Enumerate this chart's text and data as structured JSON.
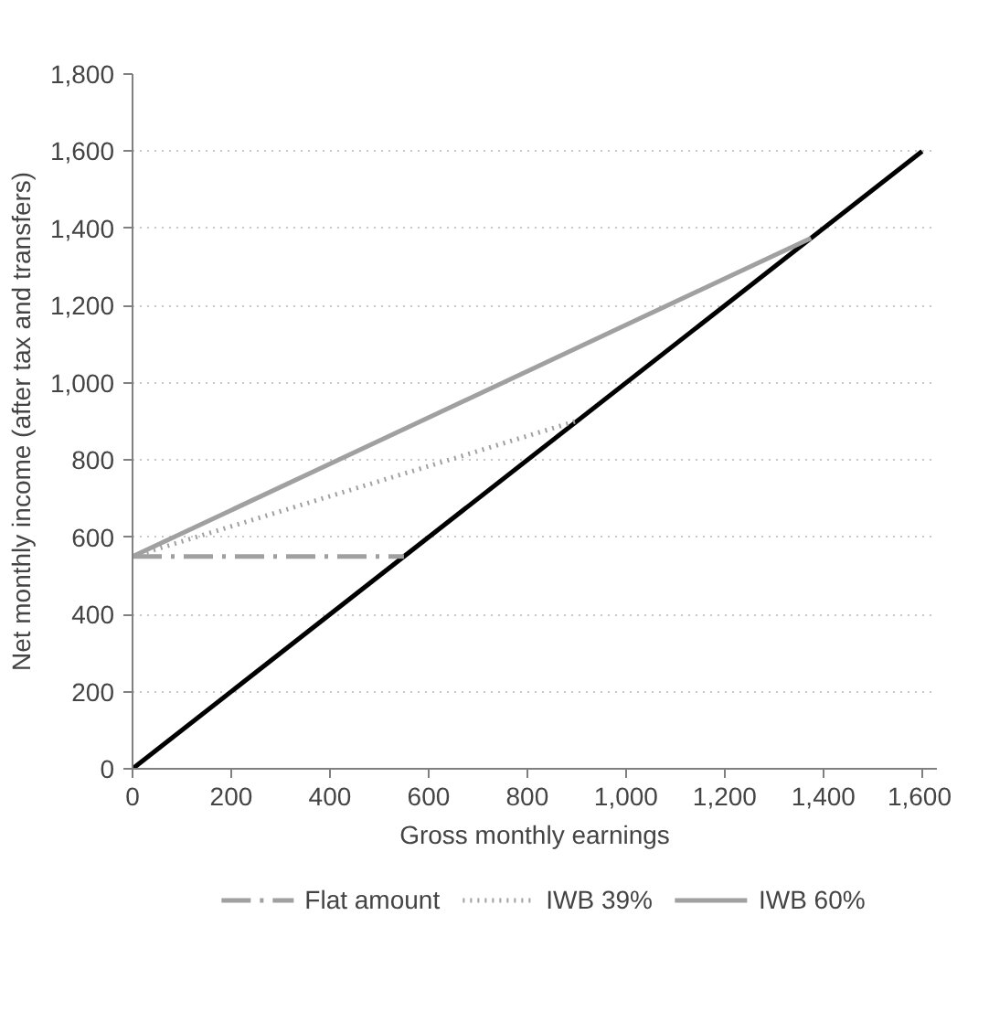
{
  "chart_data": {
    "type": "line",
    "xlabel": "Gross monthly earnings",
    "ylabel": "Net monthly income (after tax and transfers)",
    "xlim": [
      0,
      1630
    ],
    "ylim": [
      0,
      1800
    ],
    "xticks": [
      0,
      200,
      400,
      600,
      800,
      {
        "value": 1000,
        "label": "1,000"
      },
      {
        "value": 1200,
        "label": "1,200"
      },
      {
        "value": 1400,
        "label": "1,400"
      },
      {
        "value": 1600,
        "label": "1,600"
      }
    ],
    "yticks": [
      0,
      200,
      400,
      600,
      800,
      {
        "value": 1000,
        "label": "1,000"
      },
      {
        "value": 1200,
        "label": "1,200"
      },
      {
        "value": 1400,
        "label": "1,400"
      },
      {
        "value": 1600,
        "label": "1,600"
      },
      {
        "value": 1800,
        "label": "1,800"
      }
    ],
    "grid": "y",
    "legend": "bottom",
    "series": [
      {
        "color": "#000000",
        "x": [
          0,
          1600
        ],
        "values": [
          0,
          1600
        ],
        "line_style": "solid"
      },
      {
        "name": "Flat amount",
        "color": "#a0a0a0",
        "x": [
          0,
          550
        ],
        "values": [
          550,
          550
        ],
        "line_style": "dashdot"
      },
      {
        "name": "IWB 39%",
        "color": "#a0a0a0",
        "x": [
          0,
          902
        ],
        "values": [
          550,
          902
        ],
        "line_style": "dotted"
      },
      {
        "name": "IWB 60%",
        "color": "#a0a0a0",
        "x": [
          0,
          1375
        ],
        "values": [
          550,
          1375
        ],
        "line_style": "solid"
      }
    ]
  }
}
